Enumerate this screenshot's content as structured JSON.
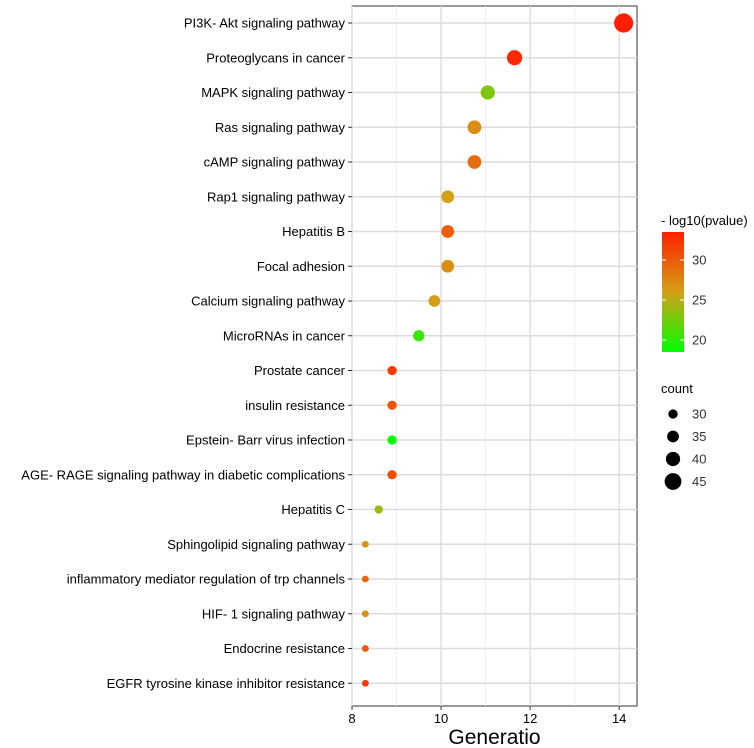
{
  "chart_data": {
    "type": "scatter",
    "xlabel": "Generatio",
    "ylabel": "",
    "xlim": [
      8,
      14.4
    ],
    "x_ticks": [
      "8",
      "10",
      "12",
      "14"
    ],
    "x_tick_values": [
      8,
      10,
      12,
      14
    ],
    "grid": true,
    "color_legend_title": "- log10(pvalue)",
    "color_ticks": [
      "20",
      "25",
      "30"
    ],
    "color_tick_values": [
      20,
      25,
      30
    ],
    "color_range": [
      18.5,
      33.5
    ],
    "color_low": "#00ff00",
    "color_mid": "#d4a017",
    "color_high": "#ff2000",
    "size_legend_title": "count",
    "size_ticks": [
      "30",
      "35",
      "40",
      "45"
    ],
    "size_tick_values": [
      30,
      35,
      40,
      45
    ],
    "size_range": [
      20,
      50
    ],
    "points": [
      {
        "pathway": "PI3K- Akt signaling pathway",
        "gene_ratio": 14.1,
        "neg_log10_pvalue": 33.5,
        "count": 50
      },
      {
        "pathway": "Proteoglycans in cancer",
        "gene_ratio": 11.65,
        "neg_log10_pvalue": 33.0,
        "count": 42
      },
      {
        "pathway": "MAPK signaling pathway",
        "gene_ratio": 11.05,
        "neg_log10_pvalue": 23.0,
        "count": 40
      },
      {
        "pathway": "Ras signaling pathway",
        "gene_ratio": 10.75,
        "neg_log10_pvalue": 27.0,
        "count": 39
      },
      {
        "pathway": "cAMP signaling pathway",
        "gene_ratio": 10.75,
        "neg_log10_pvalue": 29.0,
        "count": 39
      },
      {
        "pathway": "Rap1 signaling pathway",
        "gene_ratio": 10.15,
        "neg_log10_pvalue": 26.0,
        "count": 37
      },
      {
        "pathway": "Hepatitis B",
        "gene_ratio": 10.15,
        "neg_log10_pvalue": 30.0,
        "count": 37
      },
      {
        "pathway": "Focal adhesion",
        "gene_ratio": 10.15,
        "neg_log10_pvalue": 27.0,
        "count": 37
      },
      {
        "pathway": "Calcium signaling pathway",
        "gene_ratio": 9.85,
        "neg_log10_pvalue": 26.0,
        "count": 35
      },
      {
        "pathway": "MicroRNAs in cancer",
        "gene_ratio": 9.5,
        "neg_log10_pvalue": 20.5,
        "count": 34
      },
      {
        "pathway": "Prostate cancer",
        "gene_ratio": 8.9,
        "neg_log10_pvalue": 32.0,
        "count": 30
      },
      {
        "pathway": "insulin resistance",
        "gene_ratio": 8.9,
        "neg_log10_pvalue": 30.5,
        "count": 30
      },
      {
        "pathway": "Epstein- Barr virus infection",
        "gene_ratio": 8.9,
        "neg_log10_pvalue": 18.5,
        "count": 30
      },
      {
        "pathway": "AGE- RAGE signaling pathway in diabetic complications",
        "gene_ratio": 8.9,
        "neg_log10_pvalue": 31.0,
        "count": 30
      },
      {
        "pathway": "Hepatitis C",
        "gene_ratio": 8.6,
        "neg_log10_pvalue": 24.0,
        "count": 28
      },
      {
        "pathway": "Sphingolipid signaling pathway",
        "gene_ratio": 8.3,
        "neg_log10_pvalue": 26.5,
        "count": 25
      },
      {
        "pathway": "inflammatory mediator regulation of trp channels",
        "gene_ratio": 8.3,
        "neg_log10_pvalue": 29.5,
        "count": 25
      },
      {
        "pathway": "HIF- 1 signaling pathway",
        "gene_ratio": 8.3,
        "neg_log10_pvalue": 27.0,
        "count": 25
      },
      {
        "pathway": "Endocrine resistance",
        "gene_ratio": 8.3,
        "neg_log10_pvalue": 30.5,
        "count": 25
      },
      {
        "pathway": "EGFR tyrosine kinase inhibitor resistance",
        "gene_ratio": 8.3,
        "neg_log10_pvalue": 32.0,
        "count": 25
      }
    ]
  }
}
